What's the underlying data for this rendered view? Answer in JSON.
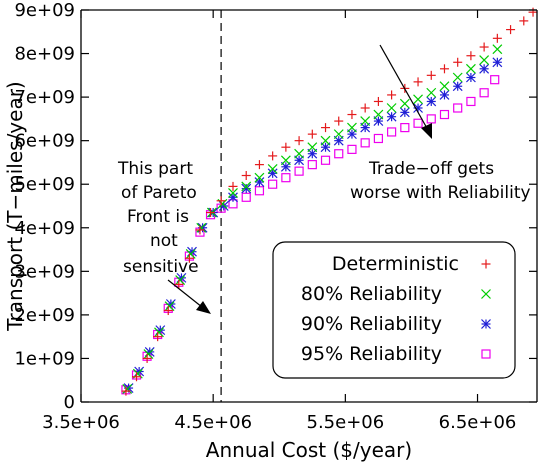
{
  "chart_data": {
    "type": "scatter",
    "xlabel": "Annual Cost ($/year)",
    "ylabel": "Transport (T−miles/year)",
    "xlim": [
      3500000,
      6950000
    ],
    "ylim": [
      0,
      9000000000
    ],
    "x_ticks": [
      {
        "value": 3500000,
        "label": "3.5e+06"
      },
      {
        "value": 4500000,
        "label": "4.5e+06"
      },
      {
        "value": 5500000,
        "label": "5.5e+06"
      },
      {
        "value": 6500000,
        "label": "6.5e+06"
      }
    ],
    "y_ticks": [
      {
        "value": 0,
        "label": "0"
      },
      {
        "value": 1000000000,
        "label": "1e+09"
      },
      {
        "value": 2000000000,
        "label": "2e+09"
      },
      {
        "value": 3000000000,
        "label": "3e+09"
      },
      {
        "value": 4000000000,
        "label": "4e+09"
      },
      {
        "value": 5000000000,
        "label": "5e+09"
      },
      {
        "value": 6000000000,
        "label": "6e+09"
      },
      {
        "value": 7000000000,
        "label": "7e+09"
      },
      {
        "value": 8000000000,
        "label": "8e+09"
      },
      {
        "value": 9000000000,
        "label": "9e+09"
      }
    ],
    "vertical_line": {
      "x": 4560000,
      "style": "dashed"
    },
    "legend_position": "bottom-right",
    "series": [
      {
        "name": "Deterministic",
        "marker": "plus",
        "color": "#e41a1c",
        "x": [
          3840000,
          3920000,
          4000000,
          4080000,
          4160000,
          4240000,
          4320000,
          4400000,
          4480000,
          4560000,
          4650000,
          4750000,
          4850000,
          4950000,
          5050000,
          5150000,
          5250000,
          5350000,
          5450000,
          5550000,
          5650000,
          5750000,
          5850000,
          5950000,
          6050000,
          6150000,
          6250000,
          6350000,
          6450000,
          6550000,
          6650000,
          6750000,
          6850000,
          6920000
        ],
        "y": [
          250000000,
          580000000,
          1000000000,
          1500000000,
          2100000000,
          2700000000,
          3300000000,
          3950000000,
          4350000000,
          4620000000,
          4950000000,
          5200000000,
          5450000000,
          5650000000,
          5850000000,
          6000000000,
          6150000000,
          6300000000,
          6450000000,
          6600000000,
          6750000000,
          6900000000,
          7050000000,
          7200000000,
          7350000000,
          7500000000,
          7650000000,
          7800000000,
          7950000000,
          8150000000,
          8350000000,
          8550000000,
          8750000000,
          8950000000
        ]
      },
      {
        "name": "80% Reliability",
        "marker": "cross",
        "color": "#00cc00",
        "x": [
          3850000,
          3930000,
          4010000,
          4090000,
          4170000,
          4250000,
          4330000,
          4410000,
          4490000,
          4570000,
          4650000,
          4750000,
          4850000,
          4950000,
          5050000,
          5150000,
          5250000,
          5350000,
          5450000,
          5550000,
          5650000,
          5750000,
          5850000,
          5950000,
          6050000,
          6150000,
          6250000,
          6350000,
          6450000,
          6550000,
          6650000
        ],
        "y": [
          300000000,
          650000000,
          1100000000,
          1600000000,
          2200000000,
          2800000000,
          3400000000,
          4000000000,
          4350000000,
          4550000000,
          4800000000,
          4950000000,
          5150000000,
          5350000000,
          5550000000,
          5700000000,
          5850000000,
          6000000000,
          6150000000,
          6300000000,
          6450000000,
          6600000000,
          6750000000,
          6850000000,
          6950000000,
          7100000000,
          7250000000,
          7450000000,
          7650000000,
          7850000000,
          8100000000
        ]
      },
      {
        "name": "90% Reliability",
        "marker": "star",
        "color": "#1f1fd6",
        "x": [
          3860000,
          3940000,
          4020000,
          4100000,
          4180000,
          4260000,
          4340000,
          4420000,
          4500000,
          4580000,
          4650000,
          4750000,
          4850000,
          4950000,
          5050000,
          5150000,
          5250000,
          5350000,
          5450000,
          5550000,
          5650000,
          5750000,
          5850000,
          5950000,
          6050000,
          6150000,
          6250000,
          6350000,
          6450000,
          6550000,
          6650000
        ],
        "y": [
          320000000,
          700000000,
          1150000000,
          1650000000,
          2250000000,
          2850000000,
          3450000000,
          4000000000,
          4350000000,
          4500000000,
          4700000000,
          4900000000,
          5050000000,
          5250000000,
          5400000000,
          5550000000,
          5700000000,
          5850000000,
          6000000000,
          6150000000,
          6300000000,
          6450000000,
          6550000000,
          6650000000,
          6750000000,
          6900000000,
          7050000000,
          7250000000,
          7450000000,
          7650000000,
          7800000000
        ]
      },
      {
        "name": "95% Reliability",
        "marker": "square",
        "color": "#ee00ee",
        "x": [
          3840000,
          3920000,
          4000000,
          4080000,
          4160000,
          4240000,
          4320000,
          4400000,
          4480000,
          4560000,
          4650000,
          4750000,
          4850000,
          4950000,
          5050000,
          5150000,
          5250000,
          5350000,
          5450000,
          5550000,
          5650000,
          5750000,
          5850000,
          5950000,
          6050000,
          6150000,
          6250000,
          6350000,
          6450000,
          6550000,
          6630000
        ],
        "y": [
          280000000,
          620000000,
          1050000000,
          1550000000,
          2150000000,
          2750000000,
          3350000000,
          3900000000,
          4300000000,
          4450000000,
          4550000000,
          4700000000,
          4850000000,
          5000000000,
          5150000000,
          5300000000,
          5450000000,
          5550000000,
          5700000000,
          5800000000,
          5950000000,
          6050000000,
          6200000000,
          6300000000,
          6400000000,
          6500000000,
          6600000000,
          6750000000,
          6900000000,
          7100000000,
          7400000000
        ]
      }
    ],
    "annotations": [
      {
        "lines": [
          "This part",
          "of Pareto",
          "Front is",
          "not",
          "sensitive"
        ]
      },
      {
        "lines": [
          "Trade−off gets",
          "worse with Reliability"
        ]
      }
    ]
  }
}
